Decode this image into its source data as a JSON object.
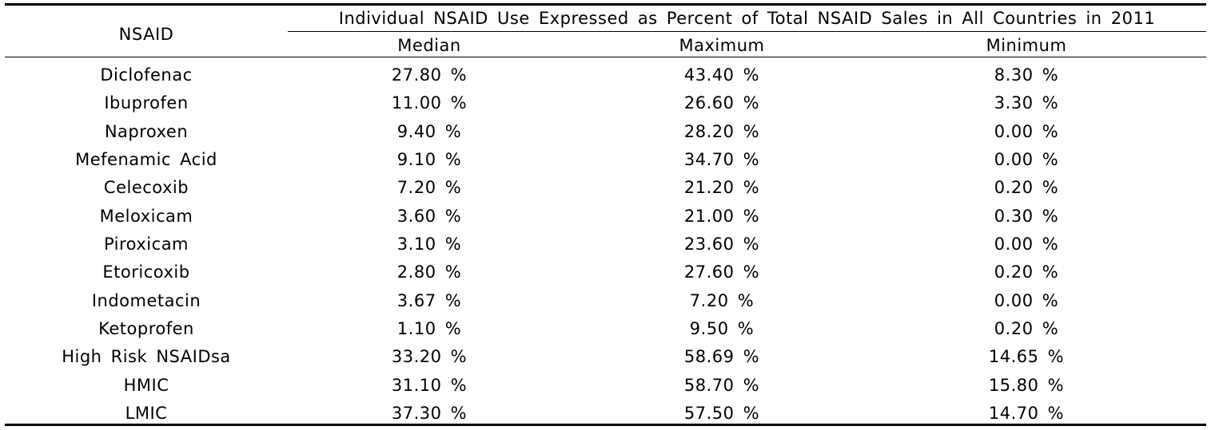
{
  "table": {
    "header": {
      "row_label": "NSAID",
      "group_title": "Individual NSAID Use Expressed as Percent of Total NSAID Sales in All Countries in 2011",
      "columns": [
        "Median",
        "Maximum",
        "Minimum"
      ]
    },
    "rows": [
      {
        "name": "Diclofenac",
        "median": "27.80 %",
        "maximum": "43.40 %",
        "minimum": "8.30 %"
      },
      {
        "name": "Ibuprofen",
        "median": "11.00 %",
        "maximum": "26.60 %",
        "minimum": "3.30 %"
      },
      {
        "name": "Naproxen",
        "median": "9.40 %",
        "maximum": "28.20 %",
        "minimum": "0.00 %"
      },
      {
        "name": "Mefenamic Acid",
        "median": "9.10 %",
        "maximum": "34.70 %",
        "minimum": "0.00 %"
      },
      {
        "name": "Celecoxib",
        "median": "7.20 %",
        "maximum": "21.20 %",
        "minimum": "0.20 %"
      },
      {
        "name": "Meloxicam",
        "median": "3.60 %",
        "maximum": "21.00 %",
        "minimum": "0.30 %"
      },
      {
        "name": "Piroxicam",
        "median": "3.10 %",
        "maximum": "23.60 %",
        "minimum": "0.00 %"
      },
      {
        "name": "Etoricoxib",
        "median": "2.80 %",
        "maximum": "27.60 %",
        "minimum": "0.20 %"
      },
      {
        "name": "Indometacin",
        "median": "3.67 %",
        "maximum": "7.20 %",
        "minimum": "0.00 %"
      },
      {
        "name": "Ketoprofen",
        "median": "1.10 %",
        "maximum": "9.50 %",
        "minimum": "0.20 %"
      },
      {
        "name": "High Risk NSAIDsa",
        "median": "33.20 %",
        "maximum": "58.69 %",
        "minimum": "14.65 %"
      },
      {
        "name": "HMIC",
        "median": "31.10 %",
        "maximum": "58.70 %",
        "minimum": "15.80 %"
      },
      {
        "name": "LMIC",
        "median": "37.30 %",
        "maximum": "57.50 %",
        "minimum": "14.70 %"
      }
    ]
  }
}
